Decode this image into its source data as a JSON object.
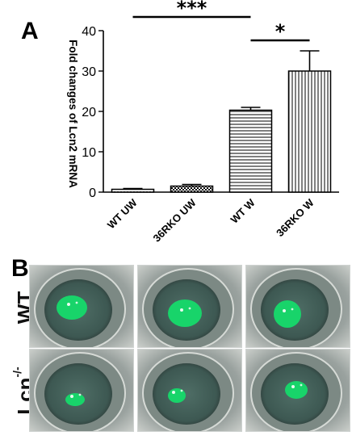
{
  "panel_a_label": "A",
  "panel_b_label": "B",
  "chart_data": {
    "type": "bar",
    "title": "",
    "xlabel": "",
    "ylabel": "Fold changes of Lcn2 mRNA",
    "categories": [
      "WT UW",
      "36RKO UW",
      "WT W",
      "36RKO W"
    ],
    "values": [
      0.7,
      1.5,
      20.3,
      30.0
    ],
    "errors": [
      0.2,
      0.4,
      0.7,
      5.0
    ],
    "ylim": [
      0,
      40
    ],
    "yticks": [
      "0",
      "10",
      "20",
      "30",
      "40"
    ],
    "bar_patterns": [
      "dots",
      "checker",
      "horizontal-lines",
      "vertical-lines"
    ],
    "grid": false,
    "significance": [
      {
        "from": "WT UW",
        "to": "WT W",
        "label": "***"
      },
      {
        "from": "WT W",
        "to": "36RKO W",
        "label": "*"
      }
    ]
  },
  "panel_b": {
    "rows": [
      {
        "label": "WT",
        "superscript": "",
        "photos": [
          "eye-photo",
          "eye-photo",
          "eye-photo"
        ]
      },
      {
        "label": "Lcn",
        "superscript": "-/-",
        "photos": [
          "eye-photo",
          "eye-photo",
          "eye-photo"
        ]
      }
    ],
    "colors": {
      "stain": "#18d46a",
      "iris": "#3d5852",
      "background": "#9aa29f"
    }
  }
}
